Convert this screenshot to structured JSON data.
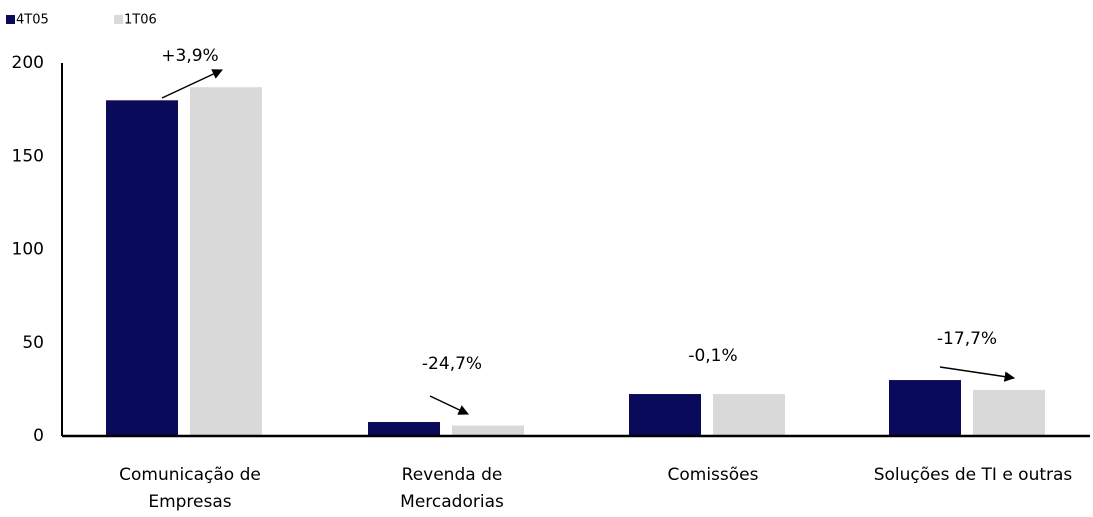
{
  "chart_data": {
    "type": "bar",
    "categories": [
      "Comunicação de\nEmpresas",
      "Revenda de\nMercadorias",
      "Comissões",
      "Soluções de TI e outras"
    ],
    "series": [
      {
        "name": "4T05",
        "color": "#0a0a5a",
        "values": [
          180,
          7.5,
          22.5,
          30
        ]
      },
      {
        "name": "1T06",
        "color": "#d9d9d9",
        "values": [
          187,
          5.6,
          22.5,
          24.7
        ]
      }
    ],
    "annotations": [
      "+3,9%",
      "-24,7%",
      "-0,1%",
      "-17,7%"
    ],
    "ylim": [
      0,
      200
    ],
    "yticks": [
      0,
      50,
      100,
      150,
      200
    ],
    "grid": false,
    "legend": "top-left"
  }
}
